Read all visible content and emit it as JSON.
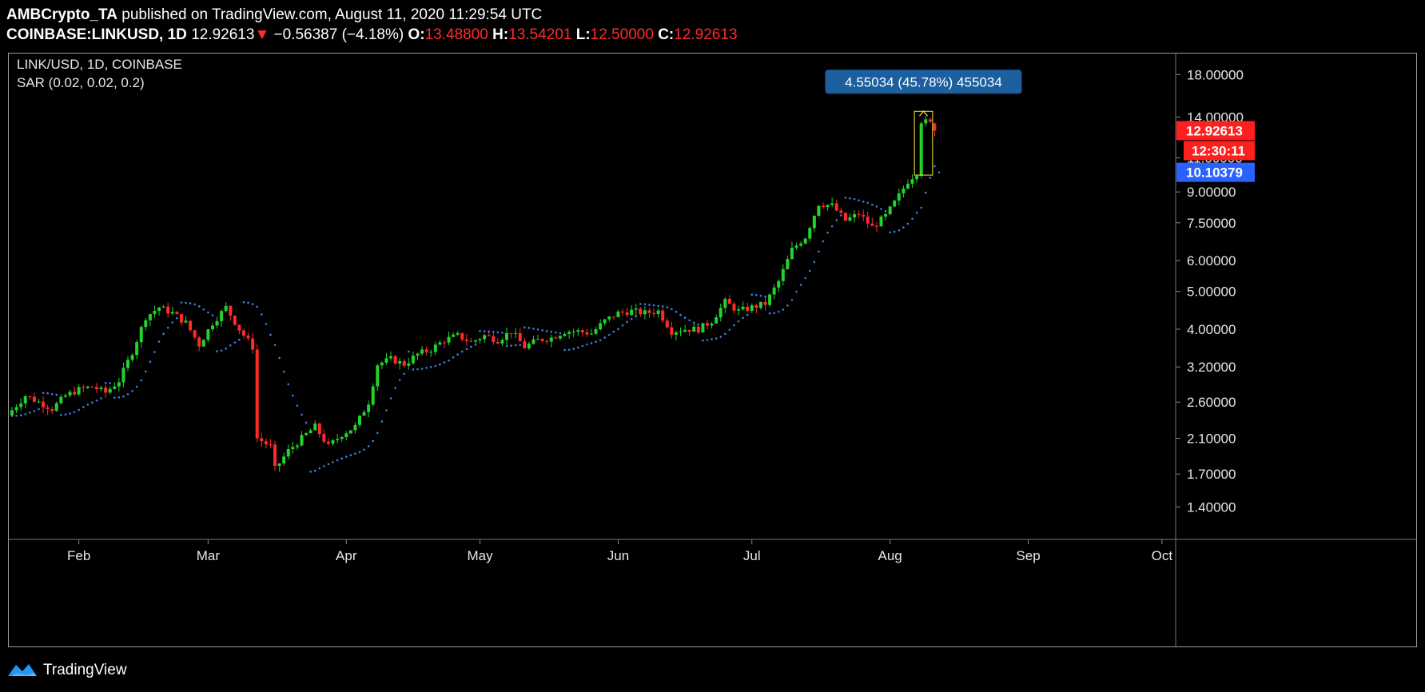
{
  "header": {
    "author": "AMBCrypto_TA",
    "published_text": "published on TradingView.com, August 11, 2020 11:29:54 UTC",
    "symbol": "COINBASE:LINKUSD, 1D",
    "last_price": "12.92613",
    "arrow": "▼",
    "change": "−0.56387 (−4.18%)",
    "open_label": "O:",
    "open": "13.48800",
    "high_label": "H:",
    "high": "13.54201",
    "low_label": "L:",
    "low": "12.50000",
    "close_label": "C:",
    "close": "12.92613"
  },
  "footer": {
    "brand": "TradingView"
  },
  "colors": {
    "up": "#22d32c",
    "down": "#ff2b2b",
    "sar": "#3d7fe0",
    "measure_bg": "#1c5f9e",
    "measure_box": "#ffeb3b",
    "price_tag": "#ff1f1f",
    "sar_tag": "#2962ff"
  },
  "chart_data": {
    "type": "candlestick",
    "title": "LINK/USD, 1D, COINBASE",
    "indicator_label": "SAR (0.02, 0.02, 0.2)",
    "y_scale": "log",
    "ylim": [
      1.2,
      20.0
    ],
    "y_ticks": [
      18.0,
      14.0,
      11.0,
      9.0,
      7.5,
      6.0,
      5.0,
      4.0,
      3.2,
      2.6,
      2.1,
      1.7,
      1.4
    ],
    "y_tick_labels": [
      "18.00000",
      "14.00000",
      "11.00000",
      "9.00000",
      "7.50000",
      "6.00000",
      "5.00000",
      "4.00000",
      "3.20000",
      "2.60000",
      "2.10000",
      "1.70000",
      "1.40000"
    ],
    "x_ticks": [
      {
        "label": "Feb",
        "date": "2020-02-01"
      },
      {
        "label": "Mar",
        "date": "2020-03-01"
      },
      {
        "label": "Apr",
        "date": "2020-04-01"
      },
      {
        "label": "May",
        "date": "2020-05-01"
      },
      {
        "label": "Jun",
        "date": "2020-06-01"
      },
      {
        "label": "Jul",
        "date": "2020-07-01"
      },
      {
        "label": "Aug",
        "date": "2020-08-01"
      },
      {
        "label": "Sep",
        "date": "2020-09-01"
      },
      {
        "label": "Oct",
        "date": "2020-10-01"
      }
    ],
    "x_range": [
      "2020-01-17",
      "2020-10-03"
    ],
    "close_series": [
      {
        "date": "2020-01-17",
        "close": 2.48
      },
      {
        "date": "2020-01-20",
        "close": 2.7
      },
      {
        "date": "2020-01-23",
        "close": 2.6
      },
      {
        "date": "2020-01-26",
        "close": 2.5
      },
      {
        "date": "2020-01-29",
        "close": 2.7
      },
      {
        "date": "2020-02-01",
        "close": 2.8
      },
      {
        "date": "2020-02-04",
        "close": 2.85
      },
      {
        "date": "2020-02-07",
        "close": 2.75
      },
      {
        "date": "2020-02-10",
        "close": 2.95
      },
      {
        "date": "2020-02-13",
        "close": 3.5
      },
      {
        "date": "2020-02-16",
        "close": 4.3
      },
      {
        "date": "2020-02-19",
        "close": 4.55
      },
      {
        "date": "2020-02-22",
        "close": 4.4
      },
      {
        "date": "2020-02-25",
        "close": 4.15
      },
      {
        "date": "2020-02-28",
        "close": 3.65
      },
      {
        "date": "2020-03-02",
        "close": 4.15
      },
      {
        "date": "2020-03-05",
        "close": 4.55
      },
      {
        "date": "2020-03-08",
        "close": 4.0
      },
      {
        "date": "2020-03-11",
        "close": 3.6
      },
      {
        "date": "2020-03-12",
        "close": 2.1
      },
      {
        "date": "2020-03-15",
        "close": 2.0
      },
      {
        "date": "2020-03-16",
        "close": 1.75
      },
      {
        "date": "2020-03-19",
        "close": 1.95
      },
      {
        "date": "2020-03-22",
        "close": 2.1
      },
      {
        "date": "2020-03-25",
        "close": 2.25
      },
      {
        "date": "2020-03-28",
        "close": 2.0
      },
      {
        "date": "2020-03-31",
        "close": 2.15
      },
      {
        "date": "2020-04-03",
        "close": 2.25
      },
      {
        "date": "2020-04-06",
        "close": 2.6
      },
      {
        "date": "2020-04-08",
        "close": 3.25
      },
      {
        "date": "2020-04-11",
        "close": 3.35
      },
      {
        "date": "2020-04-14",
        "close": 3.25
      },
      {
        "date": "2020-04-17",
        "close": 3.45
      },
      {
        "date": "2020-04-20",
        "close": 3.55
      },
      {
        "date": "2020-04-23",
        "close": 3.75
      },
      {
        "date": "2020-04-26",
        "close": 3.85
      },
      {
        "date": "2020-04-29",
        "close": 3.7
      },
      {
        "date": "2020-05-02",
        "close": 3.85
      },
      {
        "date": "2020-05-05",
        "close": 3.75
      },
      {
        "date": "2020-05-08",
        "close": 3.95
      },
      {
        "date": "2020-05-11",
        "close": 3.6
      },
      {
        "date": "2020-05-14",
        "close": 3.75
      },
      {
        "date": "2020-05-17",
        "close": 3.8
      },
      {
        "date": "2020-05-20",
        "close": 3.95
      },
      {
        "date": "2020-05-23",
        "close": 3.95
      },
      {
        "date": "2020-05-26",
        "close": 3.9
      },
      {
        "date": "2020-05-29",
        "close": 4.2
      },
      {
        "date": "2020-06-01",
        "close": 4.4
      },
      {
        "date": "2020-06-04",
        "close": 4.45
      },
      {
        "date": "2020-06-07",
        "close": 4.4
      },
      {
        "date": "2020-06-10",
        "close": 4.45
      },
      {
        "date": "2020-06-13",
        "close": 3.95
      },
      {
        "date": "2020-06-16",
        "close": 4.0
      },
      {
        "date": "2020-06-19",
        "close": 4.0
      },
      {
        "date": "2020-06-22",
        "close": 4.2
      },
      {
        "date": "2020-06-25",
        "close": 4.7
      },
      {
        "date": "2020-06-28",
        "close": 4.45
      },
      {
        "date": "2020-07-01",
        "close": 4.55
      },
      {
        "date": "2020-07-04",
        "close": 4.65
      },
      {
        "date": "2020-07-07",
        "close": 5.3
      },
      {
        "date": "2020-07-10",
        "close": 6.4
      },
      {
        "date": "2020-07-13",
        "close": 6.9
      },
      {
        "date": "2020-07-16",
        "close": 8.4
      },
      {
        "date": "2020-07-19",
        "close": 8.3
      },
      {
        "date": "2020-07-22",
        "close": 7.6
      },
      {
        "date": "2020-07-25",
        "close": 7.9
      },
      {
        "date": "2020-07-28",
        "close": 7.3
      },
      {
        "date": "2020-07-31",
        "close": 7.8
      },
      {
        "date": "2020-08-03",
        "close": 8.8
      },
      {
        "date": "2020-08-05",
        "close": 9.6
      },
      {
        "date": "2020-08-07",
        "close": 10.1
      },
      {
        "date": "2020-08-08",
        "close": 13.7
      },
      {
        "date": "2020-08-10",
        "close": 13.49
      },
      {
        "date": "2020-08-11",
        "close": 12.93
      }
    ],
    "last_candle": {
      "date": "2020-08-11",
      "open": 13.488,
      "high": 13.54201,
      "low": 12.5,
      "close": 12.92613
    },
    "price_label": "12.92613",
    "countdown_label": "12:30:11",
    "sar_label": "10.10379",
    "measure": {
      "label": "4.55034 (45.78%) 455034",
      "from_date": "2020-08-07",
      "to_date": "2020-08-10",
      "from_price": 9.94,
      "to_price": 14.49
    }
  }
}
